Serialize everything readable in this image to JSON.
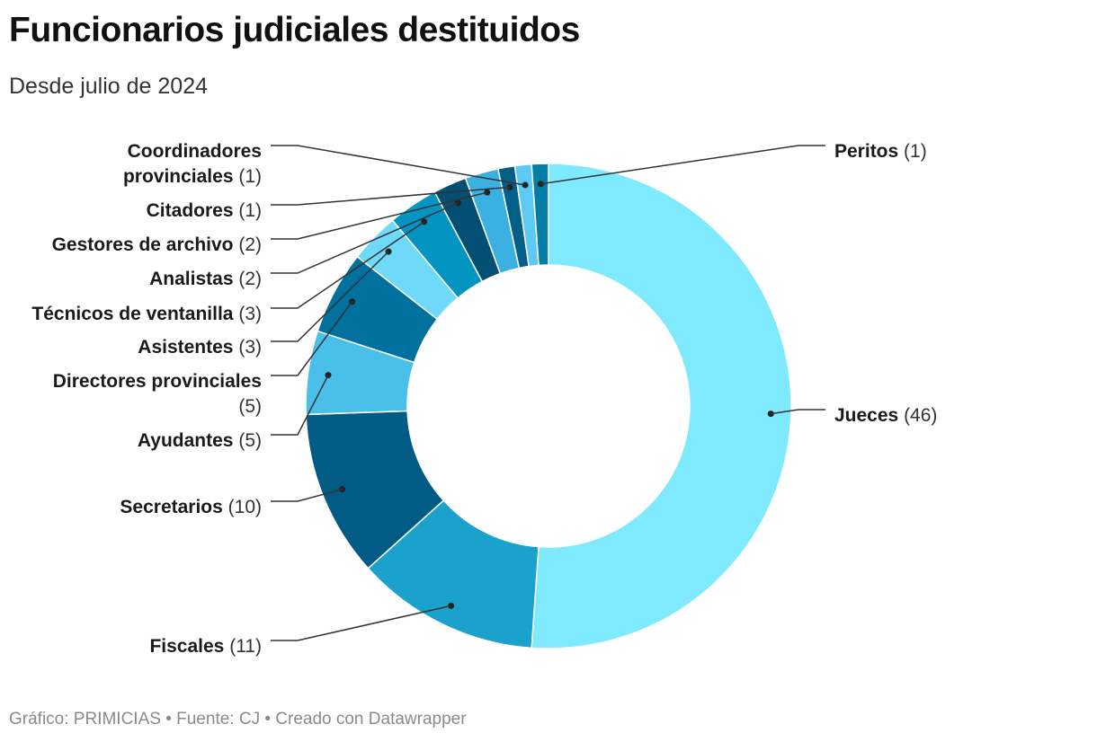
{
  "header": {
    "title": "Funcionarios judiciales destituidos",
    "subtitle": "Desde julio de 2024"
  },
  "footer": {
    "credit": "Gráfico: PRIMICIAS • Fuente: CJ • Creado con Datawrapper"
  },
  "chart_data": {
    "type": "pie",
    "donut": true,
    "categories": [
      "Jueces",
      "Fiscales",
      "Secretarios",
      "Ayudantes",
      "Directores provinciales",
      "Asistentes",
      "Técnicos de ventanilla",
      "Analistas",
      "Gestores de archivo",
      "Citadores",
      "Coordinadores provinciales",
      "Peritos"
    ],
    "values": [
      46,
      11,
      10,
      5,
      5,
      3,
      3,
      2,
      2,
      1,
      1,
      1
    ],
    "colors": [
      "#7feafd",
      "#1aa2cc",
      "#025b85",
      "#49bfea",
      "#00709c",
      "#6ed9f9",
      "#0394c1",
      "#024f73",
      "#3ab1e1",
      "#015f88",
      "#5ccaf5",
      "#047da8"
    ],
    "labels": [
      {
        "name": "Jueces",
        "value": "(46)"
      },
      {
        "name": "Fiscales",
        "value": "(11)"
      },
      {
        "name": "Secretarios",
        "value": "(10)"
      },
      {
        "name": "Ayudantes",
        "value": "(5)"
      },
      {
        "name": "Directores provinciales",
        "value": "(5)"
      },
      {
        "name": "Asistentes",
        "value": "(3)"
      },
      {
        "name": "Técnicos de ventanilla",
        "value": "(3)"
      },
      {
        "name": "Analistas",
        "value": "(2)"
      },
      {
        "name": "Gestores de archivo",
        "value": "(2)"
      },
      {
        "name": "Citadores",
        "value": "(1)"
      },
      {
        "name": "Coordinadores provinciales",
        "value": "(1)"
      },
      {
        "name": "Peritos",
        "value": "(1)"
      }
    ],
    "legend": "none"
  }
}
